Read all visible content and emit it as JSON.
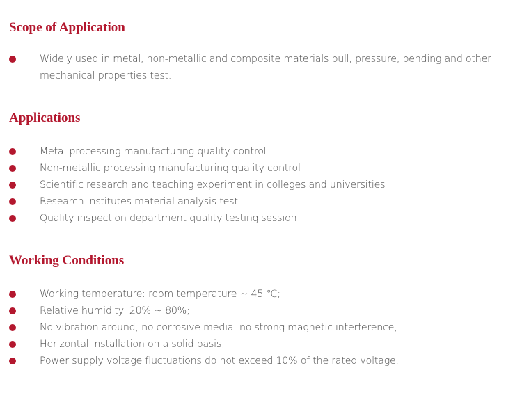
{
  "accent_color": "#b3172e",
  "bullet_icon": "filled-circle",
  "sections": [
    {
      "title": "Scope of Application",
      "items": [
        "Widely used in metal, non-metallic and composite materials pull,  pressure,  bending and other mechanical properties test."
      ]
    },
    {
      "title": "Applications",
      "items": [
        "Metal processing manufacturing quality control",
        "Non-metallic processing manufacturing quality control",
        "Scientific research and teaching experiment in colleges and universities",
        "Research institutes material analysis test",
        "Quality inspection department quality testing session"
      ]
    },
    {
      "title": "Working Conditions",
      "items": [
        "Working temperature: room temperature ~ 45 ℃;",
        "Relative humidity: 20% ~ 80%;",
        "No vibration around, no corrosive media, no strong magnetic interference;",
        "Horizontal installation on a solid basis;",
        "Power supply voltage fluctuations do not exceed 10% of the rated voltage."
      ]
    }
  ]
}
